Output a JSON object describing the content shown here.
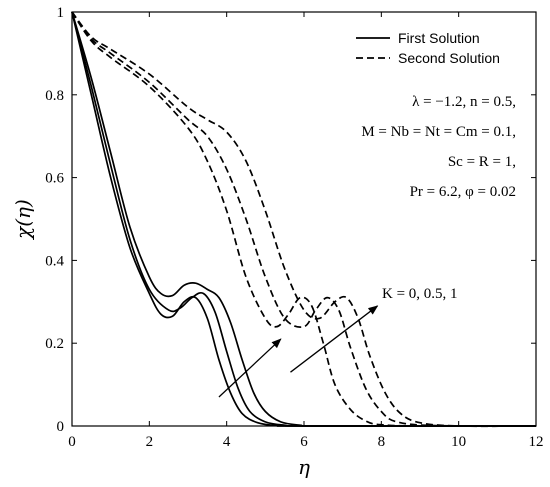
{
  "chart_data": {
    "type": "line",
    "xlabel": "η",
    "ylabel": "χ(η)",
    "xlim": [
      0,
      12
    ],
    "ylim": [
      0,
      1
    ],
    "x_ticks": [
      0,
      2,
      4,
      6,
      8,
      10,
      12
    ],
    "y_ticks": [
      0,
      0.2,
      0.4,
      0.6,
      0.8,
      1
    ],
    "x_tick_labels": [
      "0",
      "2",
      "4",
      "6",
      "8",
      "10",
      "12"
    ],
    "y_tick_labels": [
      "0",
      "0.2",
      "0.4",
      "0.6",
      "0.8",
      "1"
    ],
    "legend": {
      "position": "top-right",
      "entries": [
        {
          "label": "First Solution",
          "style": "solid"
        },
        {
          "label": "Second Solution",
          "style": "dashed"
        }
      ]
    },
    "annotations": {
      "params": [
        "λ = −1.2, n = 0.5,",
        "M = Nb = Nt = Cm = 0.1,",
        "Sc = R = 1,",
        "Pr = 6.2, φ = 0.02"
      ],
      "arrow_label": "K = 0, 0.5, 1"
    },
    "series": [
      {
        "style": "solid",
        "x": [
          0,
          0.5,
          1,
          1.5,
          2,
          2.3,
          2.6,
          2.9,
          3.2,
          3.5,
          3.8,
          4.1,
          4.4,
          4.8,
          5.3,
          6,
          12
        ],
        "y": [
          1,
          0.8,
          0.6,
          0.43,
          0.32,
          0.27,
          0.265,
          0.3,
          0.31,
          0.26,
          0.16,
          0.08,
          0.03,
          0.008,
          0.001,
          0,
          0
        ]
      },
      {
        "style": "solid",
        "x": [
          0,
          0.5,
          1,
          1.5,
          2,
          2.5,
          2.8,
          3.1,
          3.4,
          3.7,
          4,
          4.3,
          4.6,
          5,
          5.5,
          6.2,
          12
        ],
        "y": [
          1,
          0.82,
          0.63,
          0.45,
          0.33,
          0.28,
          0.285,
          0.31,
          0.32,
          0.275,
          0.18,
          0.09,
          0.035,
          0.01,
          0.002,
          0,
          0
        ]
      },
      {
        "style": "solid",
        "x": [
          0,
          0.5,
          1,
          1.5,
          2,
          2.3,
          2.6,
          2.9,
          3.2,
          3.5,
          3.8,
          4.1,
          4.4,
          4.7,
          5,
          5.4,
          5.9,
          6.5,
          12
        ],
        "y": [
          1,
          0.84,
          0.66,
          0.48,
          0.36,
          0.32,
          0.315,
          0.34,
          0.345,
          0.33,
          0.31,
          0.25,
          0.16,
          0.08,
          0.035,
          0.01,
          0.002,
          0,
          0
        ]
      },
      {
        "style": "dashed",
        "x": [
          0,
          0.5,
          1,
          2,
          3,
          3.5,
          4,
          4.5,
          5,
          5.3,
          5.6,
          5.9,
          6.2,
          6.5,
          6.8,
          7.2,
          7.6,
          8,
          9,
          12
        ],
        "y": [
          1,
          0.93,
          0.89,
          0.82,
          0.72,
          0.64,
          0.52,
          0.36,
          0.26,
          0.24,
          0.27,
          0.31,
          0.29,
          0.2,
          0.1,
          0.04,
          0.012,
          0.003,
          0,
          0
        ]
      },
      {
        "style": "dashed",
        "x": [
          0,
          0.5,
          1,
          2,
          3,
          3.5,
          4,
          4.5,
          5,
          5.5,
          6,
          6.3,
          6.6,
          6.9,
          7.2,
          7.6,
          8,
          8.4,
          9.4,
          12
        ],
        "y": [
          1,
          0.935,
          0.9,
          0.83,
          0.74,
          0.7,
          0.62,
          0.5,
          0.36,
          0.26,
          0.24,
          0.28,
          0.31,
          0.28,
          0.19,
          0.09,
          0.035,
          0.01,
          0.001,
          0
        ]
      },
      {
        "style": "dashed",
        "x": [
          0,
          0.5,
          1,
          2,
          3,
          3.5,
          4,
          4.5,
          5,
          5.5,
          6,
          6.4,
          6.8,
          7.1,
          7.4,
          7.7,
          8.1,
          8.5,
          9,
          10,
          12
        ],
        "y": [
          1,
          0.94,
          0.91,
          0.85,
          0.77,
          0.74,
          0.71,
          0.64,
          0.52,
          0.38,
          0.28,
          0.26,
          0.3,
          0.31,
          0.26,
          0.17,
          0.08,
          0.03,
          0.008,
          0,
          0
        ]
      }
    ]
  }
}
